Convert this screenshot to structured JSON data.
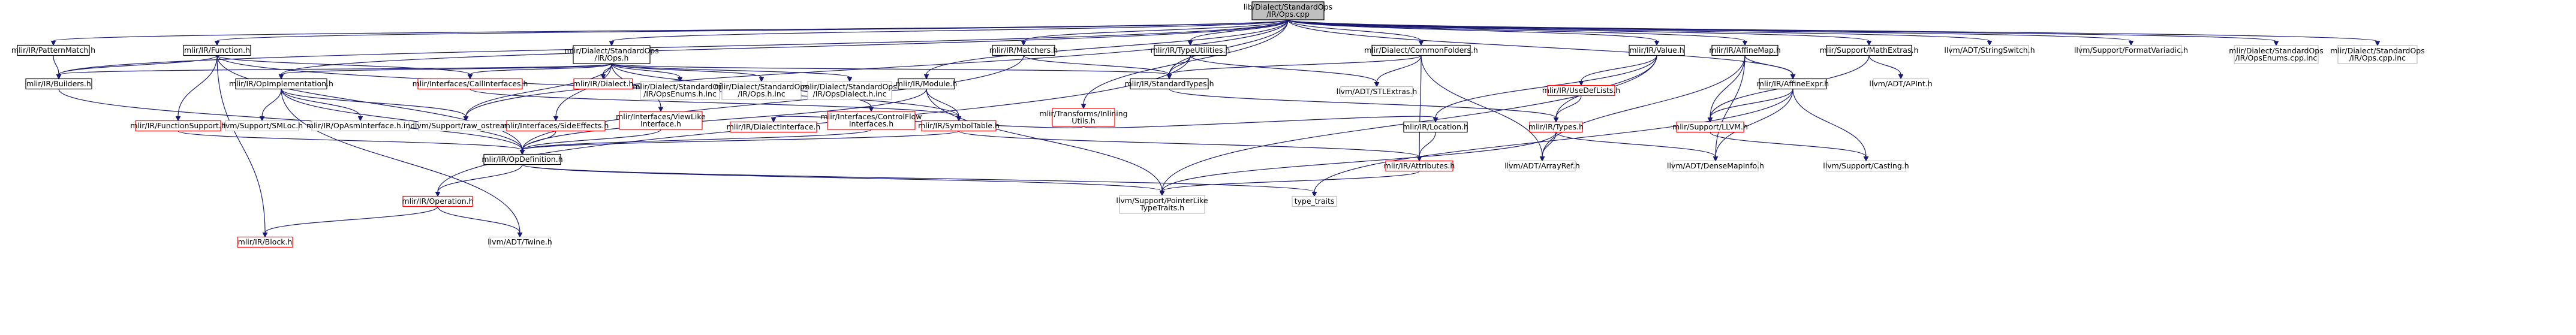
{
  "diagram": {
    "type": "include-dependency-graph",
    "colors": {
      "root_fill": "#bfbfbf",
      "documented_border": "#000000",
      "undocumented_border": "#bfbfbf",
      "truncated_border": "#ff0000",
      "edge": "#191970",
      "text": "#000000"
    },
    "nodes": [
      {
        "id": "root",
        "lines": [
          "lib/Dialect/StandardOps",
          "/IR/Ops.cpp"
        ],
        "kind": "root"
      },
      {
        "id": "patternmatch",
        "lines": [
          "mlir/IR/PatternMatch.h"
        ],
        "kind": "documented"
      },
      {
        "id": "function",
        "lines": [
          "mlir/IR/Function.h"
        ],
        "kind": "documented"
      },
      {
        "id": "stdops_h",
        "lines": [
          "mlir/Dialect/StandardOps",
          "/IR/Ops.h"
        ],
        "kind": "documented"
      },
      {
        "id": "matchers",
        "lines": [
          "mlir/IR/Matchers.h"
        ],
        "kind": "documented"
      },
      {
        "id": "inlining",
        "lines": [
          "mlir/Transforms/Inlining",
          "Utils.h"
        ],
        "kind": "truncated"
      },
      {
        "id": "typeutilities",
        "lines": [
          "mlir/IR/TypeUtilities.h"
        ],
        "kind": "documented"
      },
      {
        "id": "commonfolders",
        "lines": [
          "mlir/Dialect/CommonFolders.h"
        ],
        "kind": "documented"
      },
      {
        "id": "value",
        "lines": [
          "mlir/IR/Value.h"
        ],
        "kind": "documented"
      },
      {
        "id": "affinemap",
        "lines": [
          "mlir/IR/AffineMap.h"
        ],
        "kind": "documented"
      },
      {
        "id": "mathextras",
        "lines": [
          "mlir/Support/MathExtras.h"
        ],
        "kind": "documented"
      },
      {
        "id": "stringswitch",
        "lines": [
          "llvm/ADT/StringSwitch.h"
        ],
        "kind": "external"
      },
      {
        "id": "formatvariadic",
        "lines": [
          "llvm/Support/FormatVariadic.h"
        ],
        "kind": "external"
      },
      {
        "id": "opsenums_cpp",
        "lines": [
          "mlir/Dialect/StandardOps",
          "/IR/OpsEnums.cpp.inc"
        ],
        "kind": "external"
      },
      {
        "id": "ops_cpp_inc",
        "lines": [
          "mlir/Dialect/StandardOps",
          "/IR/Ops.cpp.inc"
        ],
        "kind": "external"
      },
      {
        "id": "builders",
        "lines": [
          "mlir/IR/Builders.h"
        ],
        "kind": "documented"
      },
      {
        "id": "opimpl",
        "lines": [
          "mlir/IR/OpImplementation.h"
        ],
        "kind": "documented"
      },
      {
        "id": "callinterfaces",
        "lines": [
          "mlir/Interfaces/CallInterfaces.h"
        ],
        "kind": "truncated"
      },
      {
        "id": "dialect",
        "lines": [
          "mlir/IR/Dialect.h"
        ],
        "kind": "truncated"
      },
      {
        "id": "opsenums_h",
        "lines": [
          "mlir/Dialect/StandardOps",
          "/IR/OpsEnums.h.inc"
        ],
        "kind": "external"
      },
      {
        "id": "ops_h_inc",
        "lines": [
          "mlir/Dialect/StandardOps",
          "/IR/Ops.h.inc"
        ],
        "kind": "external"
      },
      {
        "id": "opsdialect_h",
        "lines": [
          "mlir/Dialect/StandardOps",
          "/IR/OpsDialect.h.inc"
        ],
        "kind": "external"
      },
      {
        "id": "module",
        "lines": [
          "mlir/IR/Module.h"
        ],
        "kind": "documented"
      },
      {
        "id": "standardtypes",
        "lines": [
          "mlir/IR/StandardTypes.h"
        ],
        "kind": "documented"
      },
      {
        "id": "stlextras",
        "lines": [
          "llvm/ADT/STLExtras.h"
        ],
        "kind": "external"
      },
      {
        "id": "usedeflists",
        "lines": [
          "mlir/IR/UseDefLists.h"
        ],
        "kind": "truncated"
      },
      {
        "id": "affineexpr",
        "lines": [
          "mlir/IR/AffineExpr.h"
        ],
        "kind": "documented"
      },
      {
        "id": "apint",
        "lines": [
          "llvm/ADT/APInt.h"
        ],
        "kind": "external"
      },
      {
        "id": "functionsupport",
        "lines": [
          "mlir/IR/FunctionSupport.h"
        ],
        "kind": "truncated"
      },
      {
        "id": "smloc",
        "lines": [
          "llvm/Support/SMLoc.h"
        ],
        "kind": "external"
      },
      {
        "id": "opasminterface",
        "lines": [
          "mlir/IR/OpAsmInterface.h.inc"
        ],
        "kind": "external"
      },
      {
        "id": "raw_ostream",
        "lines": [
          "llvm/Support/raw_ostream.h"
        ],
        "kind": "external"
      },
      {
        "id": "sideeffects",
        "lines": [
          "mlir/Interfaces/SideEffects.h"
        ],
        "kind": "truncated"
      },
      {
        "id": "viewlike",
        "lines": [
          "mlir/Interfaces/ViewLike",
          "Interface.h"
        ],
        "kind": "truncated"
      },
      {
        "id": "dialectinterface",
        "lines": [
          "mlir/IR/DialectInterface.h"
        ],
        "kind": "truncated"
      },
      {
        "id": "controlflow",
        "lines": [
          "mlir/Interfaces/ControlFlow",
          "Interfaces.h"
        ],
        "kind": "truncated"
      },
      {
        "id": "symboltable",
        "lines": [
          "mlir/IR/SymbolTable.h"
        ],
        "kind": "truncated"
      },
      {
        "id": "location",
        "lines": [
          "mlir/IR/Location.h"
        ],
        "kind": "documented"
      },
      {
        "id": "types",
        "lines": [
          "mlir/IR/Types.h"
        ],
        "kind": "truncated"
      },
      {
        "id": "llvm_h",
        "lines": [
          "mlir/Support/LLVM.h"
        ],
        "kind": "truncated"
      },
      {
        "id": "opdefinition",
        "lines": [
          "mlir/IR/OpDefinition.h"
        ],
        "kind": "documented"
      },
      {
        "id": "attributes",
        "lines": [
          "mlir/IR/Attributes.h"
        ],
        "kind": "truncated"
      },
      {
        "id": "arrayref",
        "lines": [
          "llvm/ADT/ArrayRef.h"
        ],
        "kind": "external"
      },
      {
        "id": "densemapinfo",
        "lines": [
          "llvm/ADT/DenseMapInfo.h"
        ],
        "kind": "external"
      },
      {
        "id": "casting",
        "lines": [
          "llvm/Support/Casting.h"
        ],
        "kind": "external"
      },
      {
        "id": "operation",
        "lines": [
          "mlir/IR/Operation.h"
        ],
        "kind": "truncated"
      },
      {
        "id": "pointerlike",
        "lines": [
          "llvm/Support/PointerLike",
          "TypeTraits.h"
        ],
        "kind": "external"
      },
      {
        "id": "type_traits",
        "lines": [
          "type_traits"
        ],
        "kind": "external"
      },
      {
        "id": "block",
        "lines": [
          "mlir/IR/Block.h"
        ],
        "kind": "truncated"
      },
      {
        "id": "twine",
        "lines": [
          "llvm/ADT/Twine.h"
        ],
        "kind": "external"
      }
    ],
    "edges": [
      [
        "root",
        "patternmatch"
      ],
      [
        "root",
        "function"
      ],
      [
        "root",
        "stdops_h"
      ],
      [
        "root",
        "matchers"
      ],
      [
        "root",
        "inlining"
      ],
      [
        "root",
        "typeutilities"
      ],
      [
        "root",
        "commonfolders"
      ],
      [
        "root",
        "value"
      ],
      [
        "root",
        "affinemap"
      ],
      [
        "root",
        "mathextras"
      ],
      [
        "root",
        "stringswitch"
      ],
      [
        "root",
        "formatvariadic"
      ],
      [
        "root",
        "opsenums_cpp"
      ],
      [
        "root",
        "ops_cpp_inc"
      ],
      [
        "root",
        "builders"
      ],
      [
        "root",
        "opimpl"
      ],
      [
        "root",
        "standardtypes"
      ],
      [
        "root",
        "raw_ostream"
      ],
      [
        "root",
        "module"
      ],
      [
        "root",
        "affineexpr"
      ],
      [
        "patternmatch",
        "builders"
      ],
      [
        "function",
        "builders"
      ],
      [
        "function",
        "functionsupport"
      ],
      [
        "function",
        "opdefinition"
      ],
      [
        "function",
        "symboltable"
      ],
      [
        "function",
        "callinterfaces"
      ],
      [
        "function",
        "block"
      ],
      [
        "stdops_h",
        "builders"
      ],
      [
        "stdops_h",
        "opimpl"
      ],
      [
        "stdops_h",
        "callinterfaces"
      ],
      [
        "stdops_h",
        "dialect"
      ],
      [
        "stdops_h",
        "opsenums_h"
      ],
      [
        "stdops_h",
        "ops_h_inc"
      ],
      [
        "stdops_h",
        "opsdialect_h"
      ],
      [
        "stdops_h",
        "standardtypes"
      ],
      [
        "stdops_h",
        "sideeffects"
      ],
      [
        "stdops_h",
        "viewlike"
      ],
      [
        "stdops_h",
        "controlflow"
      ],
      [
        "stdops_h",
        "raw_ostream"
      ],
      [
        "matchers",
        "standardtypes"
      ],
      [
        "matchers",
        "opdefinition"
      ],
      [
        "inlining",
        "dialectinterface"
      ],
      [
        "inlining",
        "location"
      ],
      [
        "typeutilities",
        "standardtypes"
      ],
      [
        "typeutilities",
        "stlextras"
      ],
      [
        "typeutilities",
        "operation"
      ],
      [
        "commonfolders",
        "standardtypes"
      ],
      [
        "commonfolders",
        "stlextras"
      ],
      [
        "commonfolders",
        "attributes"
      ],
      [
        "commonfolders",
        "arrayref"
      ],
      [
        "value",
        "usedeflists"
      ],
      [
        "value",
        "types"
      ],
      [
        "value",
        "location"
      ],
      [
        "value",
        "pointerlike"
      ],
      [
        "affinemap",
        "llvm_h"
      ],
      [
        "affinemap",
        "affineexpr"
      ],
      [
        "affinemap",
        "arrayref"
      ],
      [
        "affinemap",
        "densemapinfo"
      ],
      [
        "mathextras",
        "llvm_h"
      ],
      [
        "mathextras",
        "apint"
      ],
      [
        "builders",
        "opdefinition"
      ],
      [
        "opimpl",
        "opdefinition"
      ],
      [
        "opimpl",
        "smloc"
      ],
      [
        "opimpl",
        "opasminterface"
      ],
      [
        "opimpl",
        "raw_ostream"
      ],
      [
        "opimpl",
        "twine"
      ],
      [
        "callinterfaces",
        "symboltable"
      ],
      [
        "module",
        "symboltable"
      ],
      [
        "module",
        "opdefinition"
      ],
      [
        "module",
        "pointerlike"
      ],
      [
        "standardtypes",
        "types"
      ],
      [
        "usedeflists",
        "types"
      ],
      [
        "affineexpr",
        "llvm_h"
      ],
      [
        "affineexpr",
        "casting"
      ],
      [
        "affineexpr",
        "densemapinfo"
      ],
      [
        "affineexpr",
        "type_traits"
      ],
      [
        "functionsupport",
        "opdefinition"
      ],
      [
        "sideeffects",
        "opdefinition"
      ],
      [
        "viewlike",
        "opdefinition"
      ],
      [
        "controlflow",
        "opdefinition"
      ],
      [
        "symboltable",
        "opdefinition"
      ],
      [
        "symboltable",
        "attributes"
      ],
      [
        "location",
        "attributes"
      ],
      [
        "types",
        "arrayref"
      ],
      [
        "types",
        "densemapinfo"
      ],
      [
        "types",
        "pointerlike"
      ],
      [
        "llvm_h",
        "casting"
      ],
      [
        "opdefinition",
        "operation"
      ],
      [
        "opdefinition",
        "type_traits"
      ],
      [
        "opdefinition",
        "pointerlike"
      ],
      [
        "attributes",
        "pointerlike"
      ],
      [
        "operation",
        "block"
      ],
      [
        "operation",
        "twine"
      ]
    ]
  }
}
